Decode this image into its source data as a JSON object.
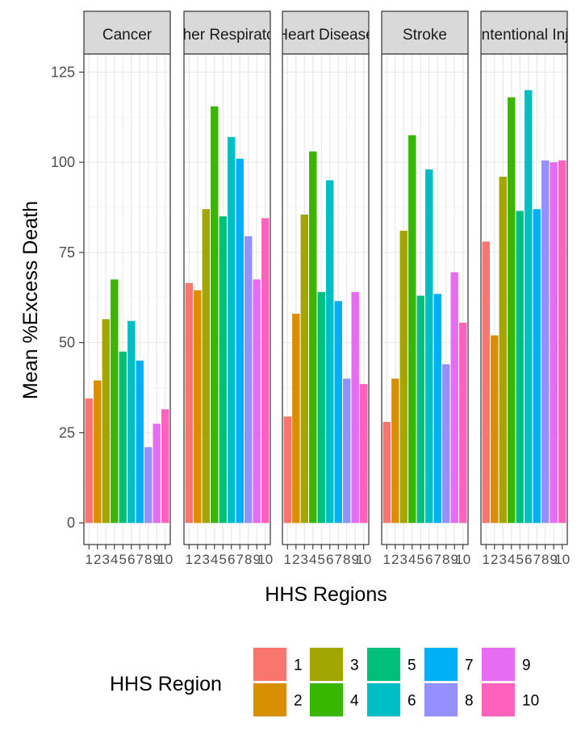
{
  "chart_data": {
    "type": "bar",
    "xlabel": "HHS Regions",
    "ylabel": "Mean %Excess Death",
    "ylim": [
      -6,
      130
    ],
    "yticks": [
      0,
      25,
      50,
      75,
      100,
      125
    ],
    "categories": [
      "1",
      "2",
      "3",
      "4",
      "5",
      "6",
      "7",
      "8",
      "9",
      "10"
    ],
    "grid": true,
    "facets": [
      {
        "name": "Cancer",
        "values": [
          34.5,
          39.5,
          56.5,
          67.5,
          47.5,
          56,
          45,
          21,
          27.5,
          31.5
        ]
      },
      {
        "name": "Other Respiratory",
        "label_shown": "er Respira",
        "values": [
          66.5,
          64.5,
          87,
          115.5,
          85,
          107,
          101,
          79.5,
          67.5,
          84.5
        ]
      },
      {
        "name": "Heart Disease",
        "label_shown": "eart Diseas",
        "values": [
          29.5,
          58,
          85.5,
          103,
          64,
          95,
          61.5,
          40,
          64,
          38.5
        ]
      },
      {
        "name": "Stroke",
        "values": [
          28,
          40,
          81,
          107.5,
          63,
          98,
          63.5,
          44,
          69.5,
          55.5
        ]
      },
      {
        "name": "Unintentional Injury",
        "label_shown": "ntentional In",
        "values": [
          78,
          52,
          96,
          118,
          86.5,
          120,
          87,
          100.5,
          100,
          100.5
        ]
      }
    ],
    "legend": {
      "title": "HHS Region",
      "position": "bottom",
      "entries": [
        "1",
        "2",
        "3",
        "4",
        "5",
        "6",
        "7",
        "8",
        "9",
        "10"
      ]
    },
    "colors": [
      "#F8766D",
      "#D89000",
      "#A3A500",
      "#39B600",
      "#00BF7D",
      "#00BFC4",
      "#00B0F6",
      "#9590FF",
      "#E76BF3",
      "#FF62BC"
    ]
  }
}
